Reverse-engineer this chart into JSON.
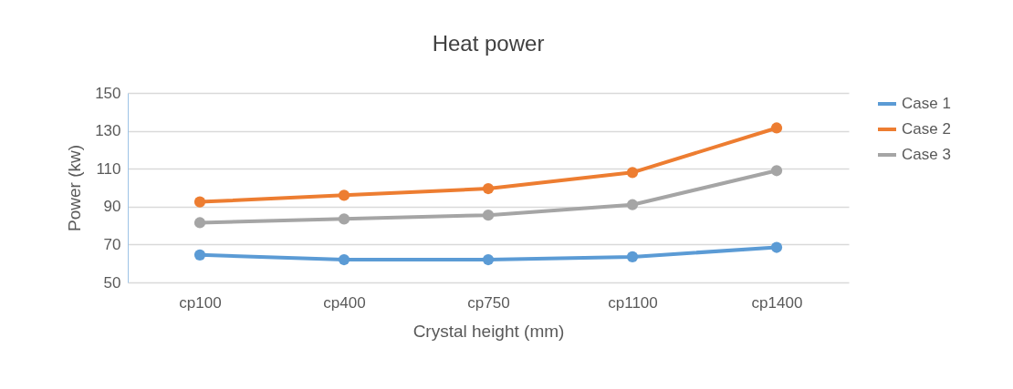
{
  "chart_data": {
    "type": "line",
    "title": "Heat power",
    "xlabel": "Crystal height (mm)",
    "ylabel": "Power (kw)",
    "categories": [
      "cp100",
      "cp400",
      "cp750",
      "cp1100",
      "cp1400"
    ],
    "series": [
      {
        "name": "Case 1",
        "color": "#5b9bd5",
        "values": [
          64.5,
          62,
          62,
          63.5,
          68.5
        ]
      },
      {
        "name": "Case 2",
        "color": "#ed7d31",
        "values": [
          92.5,
          96,
          99.5,
          108,
          131.5
        ]
      },
      {
        "name": "Case 3",
        "color": "#a5a5a5",
        "values": [
          81.5,
          83.5,
          85.5,
          91,
          109
        ]
      }
    ],
    "ylim": [
      50,
      150
    ],
    "yticks": [
      50,
      70,
      90,
      110,
      130,
      150
    ],
    "grid": "y",
    "legend": "right",
    "marker": "circle",
    "line_style": "solid"
  }
}
